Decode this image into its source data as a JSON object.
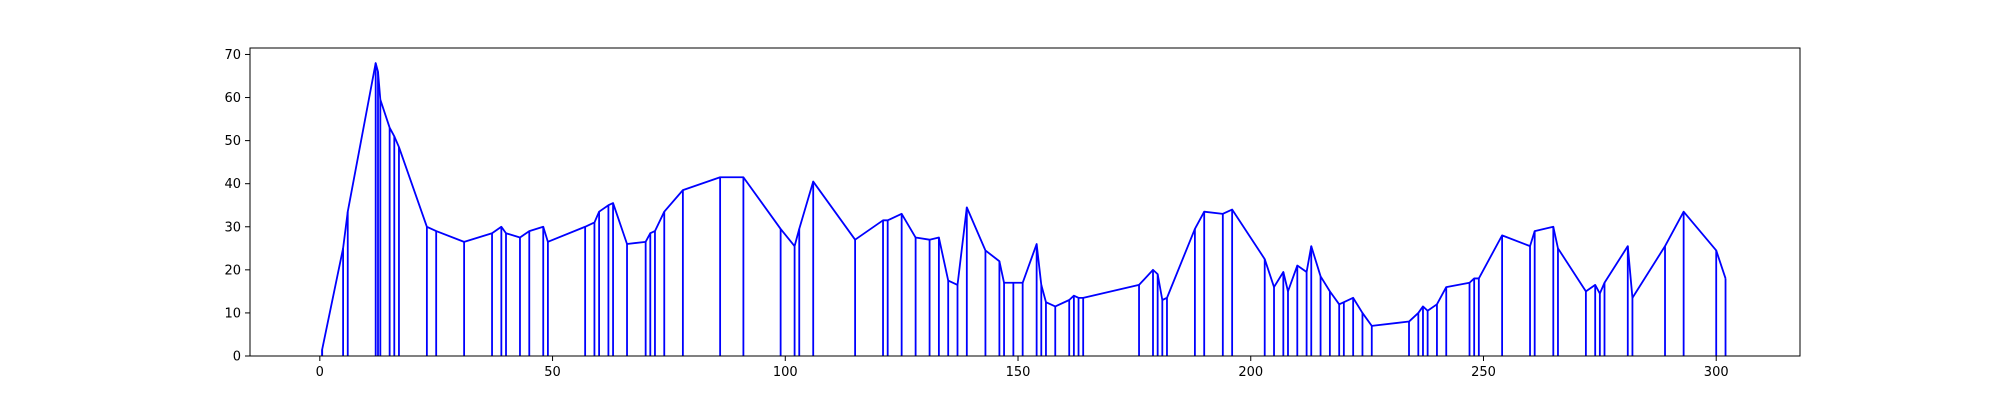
{
  "colors": {
    "line": "#0000ff",
    "axes": "#000000",
    "background": "#ffffff"
  },
  "chart_data": {
    "type": "line",
    "title": "",
    "xlabel": "",
    "ylabel": "",
    "xlim": [
      -15,
      318
    ],
    "ylim": [
      0,
      71.5
    ],
    "grid": false,
    "legend": "none",
    "x_ticks": [
      0,
      50,
      100,
      150,
      200,
      250,
      300
    ],
    "y_ticks": [
      0,
      10,
      20,
      30,
      40,
      50,
      60,
      70
    ],
    "x_tick_labels": [
      "0",
      "50",
      "100",
      "150",
      "200",
      "250",
      "300"
    ],
    "y_tick_labels": [
      "0",
      "10",
      "20",
      "30",
      "40",
      "50",
      "60",
      "70"
    ],
    "series": [
      {
        "color": "#0000ff",
        "drop_lines_to_zero": true,
        "points": [
          [
            0.5,
            0
          ],
          [
            0.5,
            1.5
          ],
          [
            5,
            25
          ],
          [
            6,
            33.5
          ],
          [
            12,
            68
          ],
          [
            12.5,
            66
          ],
          [
            13,
            59.5
          ],
          [
            15,
            53
          ],
          [
            16,
            51
          ],
          [
            17,
            48.5
          ],
          [
            23,
            30
          ],
          [
            25,
            29
          ],
          [
            31,
            26.5
          ],
          [
            37,
            28.5
          ],
          [
            39,
            30
          ],
          [
            40,
            28.5
          ],
          [
            43,
            27.5
          ],
          [
            45,
            29
          ],
          [
            48,
            30
          ],
          [
            49,
            26.5
          ],
          [
            57,
            30
          ],
          [
            59,
            31
          ],
          [
            60,
            33.5
          ],
          [
            62,
            35
          ],
          [
            63,
            35.5
          ],
          [
            66,
            26
          ],
          [
            70,
            26.5
          ],
          [
            71,
            28.5
          ],
          [
            72,
            29
          ],
          [
            74,
            33.5
          ],
          [
            78,
            38.5
          ],
          [
            86,
            41.5
          ],
          [
            91,
            41.5
          ],
          [
            99,
            29.5
          ],
          [
            102,
            25.5
          ],
          [
            103,
            29.5
          ],
          [
            106,
            40.5
          ],
          [
            115,
            27
          ],
          [
            121,
            31.5
          ],
          [
            122,
            31.5
          ],
          [
            125,
            33
          ],
          [
            128,
            27.5
          ],
          [
            131,
            27
          ],
          [
            133,
            27.5
          ],
          [
            135,
            17.5
          ],
          [
            137,
            16.5
          ],
          [
            139,
            34.5
          ],
          [
            143,
            24.5
          ],
          [
            146,
            22
          ],
          [
            147,
            17
          ],
          [
            149,
            17
          ],
          [
            151,
            17
          ],
          [
            154,
            26
          ],
          [
            155,
            16.5
          ],
          [
            156,
            12.5
          ],
          [
            158,
            11.5
          ],
          [
            161,
            13
          ],
          [
            162,
            14
          ],
          [
            163,
            13.5
          ],
          [
            164,
            13.5
          ],
          [
            176,
            16.5
          ],
          [
            179,
            20
          ],
          [
            180,
            19
          ],
          [
            181,
            13
          ],
          [
            182,
            13.5
          ],
          [
            188,
            29.5
          ],
          [
            190,
            33.5
          ],
          [
            194,
            33
          ],
          [
            196,
            34
          ],
          [
            203,
            22.5
          ],
          [
            205,
            16
          ],
          [
            207,
            19.5
          ],
          [
            208,
            15
          ],
          [
            210,
            21
          ],
          [
            212,
            19.5
          ],
          [
            213,
            25.5
          ],
          [
            215,
            18.5
          ],
          [
            217,
            15
          ],
          [
            219,
            12
          ],
          [
            220,
            12.5
          ],
          [
            222,
            13.5
          ],
          [
            224,
            10
          ],
          [
            226,
            7
          ],
          [
            234,
            8
          ],
          [
            236,
            10
          ],
          [
            237,
            11.5
          ],
          [
            238,
            10.5
          ],
          [
            240,
            12
          ],
          [
            242,
            16
          ],
          [
            247,
            17
          ],
          [
            248,
            18
          ],
          [
            249,
            18
          ],
          [
            254,
            28
          ],
          [
            260,
            25.5
          ],
          [
            261,
            29
          ],
          [
            265,
            30
          ],
          [
            266,
            25
          ],
          [
            272,
            15
          ],
          [
            274,
            16.5
          ],
          [
            275,
            14.5
          ],
          [
            276,
            17
          ],
          [
            281,
            25.5
          ],
          [
            282,
            13.5
          ],
          [
            289,
            25.5
          ],
          [
            293,
            33.5
          ],
          [
            300,
            24.5
          ],
          [
            302,
            18
          ]
        ]
      }
    ]
  }
}
